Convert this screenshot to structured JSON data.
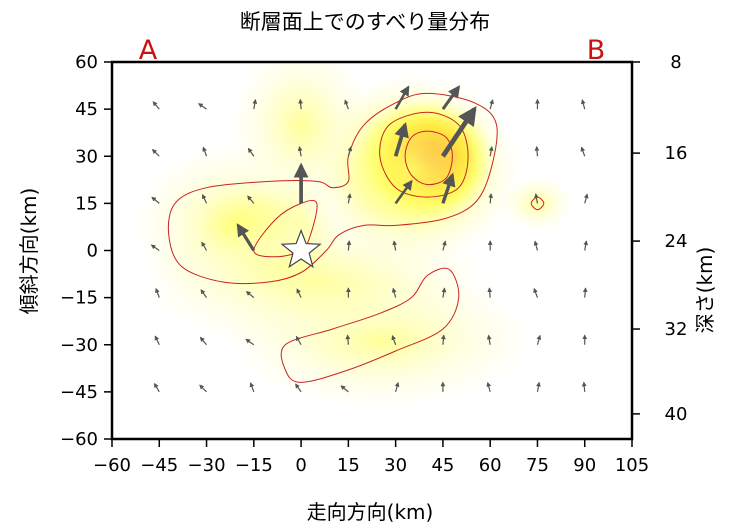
{
  "chart_data": {
    "type": "heatmap",
    "title": "断層面上でのすべり量分布",
    "xlabel": "走向方向(km)",
    "ylabel": "傾斜方向(km)",
    "y2label": "深さ(km)",
    "xlim": [
      -60,
      105
    ],
    "ylim": [
      -60,
      60
    ],
    "x_ticks": [
      -60,
      -45,
      -30,
      -15,
      0,
      15,
      30,
      45,
      60,
      75,
      90,
      105
    ],
    "x_tick_labels": [
      "−60",
      "−45",
      "−30",
      "−15",
      "0",
      "15",
      "30",
      "45",
      "60",
      "75",
      "90",
      "105"
    ],
    "y_ticks": [
      60,
      45,
      30,
      15,
      0,
      -15,
      -30,
      -45,
      -60
    ],
    "y_tick_labels": [
      "60",
      "45",
      "30",
      "15",
      "0",
      "−15",
      "−30",
      "−45",
      "−60"
    ],
    "depth_ticks": [
      {
        "label": "8",
        "at_y": 60
      },
      {
        "label": "16",
        "at_y": 31
      },
      {
        "label": "24",
        "at_y": 3
      },
      {
        "label": "32",
        "at_y": -25
      },
      {
        "label": "40",
        "at_y": -52
      }
    ],
    "section_markers": {
      "start": "A",
      "end": "B"
    },
    "colormap": [
      "#ffffff",
      "#ffffcc",
      "#ffff66",
      "#ffcc00",
      "#ff6600",
      "#ee1100"
    ],
    "contour_color": "#cc2222",
    "hypocenter": {
      "x": 0,
      "y": 0
    },
    "slip_patches": [
      {
        "x": 40,
        "y": 29,
        "peak": 1.0,
        "sx": 10,
        "sy": 9
      },
      {
        "x": 35,
        "y": 26,
        "peak": 0.35,
        "sx": 16,
        "sy": 14
      },
      {
        "x": 0,
        "y": 40,
        "peak": 0.12,
        "sx": 10,
        "sy": 12
      },
      {
        "x": -10,
        "y": 5,
        "peak": 0.33,
        "sx": 11,
        "sy": 9
      },
      {
        "x": -22,
        "y": 8,
        "peak": 0.14,
        "sx": 14,
        "sy": 12
      },
      {
        "x": 25,
        "y": -28,
        "peak": 0.16,
        "sx": 22,
        "sy": 10
      },
      {
        "x": 5,
        "y": -10,
        "peak": 0.06,
        "sx": 25,
        "sy": 10
      },
      {
        "x": 75,
        "y": 15,
        "peak": 0.06,
        "sx": 5,
        "sy": 4
      }
    ],
    "contours": [
      {
        "level": "outer-north",
        "path": [
          [
            -40,
            15
          ],
          [
            -30,
            20
          ],
          [
            -10,
            22
          ],
          [
            5,
            22
          ],
          [
            10,
            20
          ],
          [
            15,
            22
          ],
          [
            15,
            30
          ],
          [
            20,
            40
          ],
          [
            30,
            47
          ],
          [
            40,
            50
          ],
          [
            55,
            47
          ],
          [
            62,
            40
          ],
          [
            60,
            25
          ],
          [
            55,
            15
          ],
          [
            45,
            10
          ],
          [
            30,
            8
          ],
          [
            20,
            8
          ],
          [
            12,
            5
          ],
          [
            8,
            0
          ],
          [
            0,
            -7
          ],
          [
            -10,
            -10
          ],
          [
            -25,
            -10
          ],
          [
            -38,
            -5
          ],
          [
            -42,
            5
          ]
        ]
      },
      {
        "level": "outer-south",
        "path": [
          [
            -5,
            -30
          ],
          [
            10,
            -25
          ],
          [
            25,
            -20
          ],
          [
            35,
            -15
          ],
          [
            40,
            -8
          ],
          [
            47,
            -6
          ],
          [
            50,
            -15
          ],
          [
            45,
            -25
          ],
          [
            30,
            -32
          ],
          [
            15,
            -38
          ],
          [
            0,
            -42
          ],
          [
            -5,
            -38
          ]
        ]
      },
      {
        "level": "mid-west",
        "path": [
          [
            -15,
            0
          ],
          [
            -8,
            10
          ],
          [
            0,
            15
          ],
          [
            5,
            15
          ],
          [
            3,
            5
          ],
          [
            0,
            0
          ],
          [
            -8,
            -2
          ]
        ]
      },
      {
        "level": "mid-north",
        "path": [
          [
            25,
            30
          ],
          [
            28,
            40
          ],
          [
            40,
            44
          ],
          [
            50,
            40
          ],
          [
            53,
            30
          ],
          [
            50,
            20
          ],
          [
            40,
            17
          ],
          [
            30,
            20
          ]
        ]
      },
      {
        "level": "inner-north",
        "path": [
          [
            33,
            30
          ],
          [
            35,
            36
          ],
          [
            40,
            38
          ],
          [
            46,
            36
          ],
          [
            48,
            30
          ],
          [
            46,
            23
          ],
          [
            40,
            21
          ],
          [
            35,
            24
          ]
        ]
      },
      {
        "level": "small",
        "path": [
          [
            73,
            15
          ],
          [
            75,
            17
          ],
          [
            77,
            15
          ],
          [
            75,
            13
          ]
        ]
      }
    ],
    "grid_step": 15,
    "grid_x": [
      -45,
      -30,
      -15,
      0,
      15,
      30,
      45,
      60,
      75,
      90
    ],
    "grid_y": [
      45,
      30,
      15,
      0,
      -15,
      -30,
      -45
    ],
    "slip_vectors": [
      {
        "x": -15,
        "y": 0,
        "dx": -5,
        "dy": 8,
        "w": 1.9
      },
      {
        "x": 0,
        "y": 15,
        "dx": 0,
        "dy": 12,
        "w": 2.2
      },
      {
        "x": 30,
        "y": 15,
        "dx": 5,
        "dy": 7,
        "w": 1.5
      },
      {
        "x": 30,
        "y": 30,
        "dx": 3,
        "dy": 10,
        "w": 2.2
      },
      {
        "x": 30,
        "y": 45,
        "dx": 4,
        "dy": 7,
        "w": 1.5
      },
      {
        "x": 45,
        "y": 15,
        "dx": 3,
        "dy": 9,
        "w": 2.0
      },
      {
        "x": 45,
        "y": 30,
        "dx": 10,
        "dy": 15,
        "w": 2.8
      },
      {
        "x": 45,
        "y": 45,
        "dx": 5,
        "dy": 7,
        "w": 1.8
      },
      {
        "x": 40,
        "y": 22,
        "dx": 0,
        "dy": 0,
        "w": 0
      }
    ],
    "small_vector_scale": 3
  }
}
